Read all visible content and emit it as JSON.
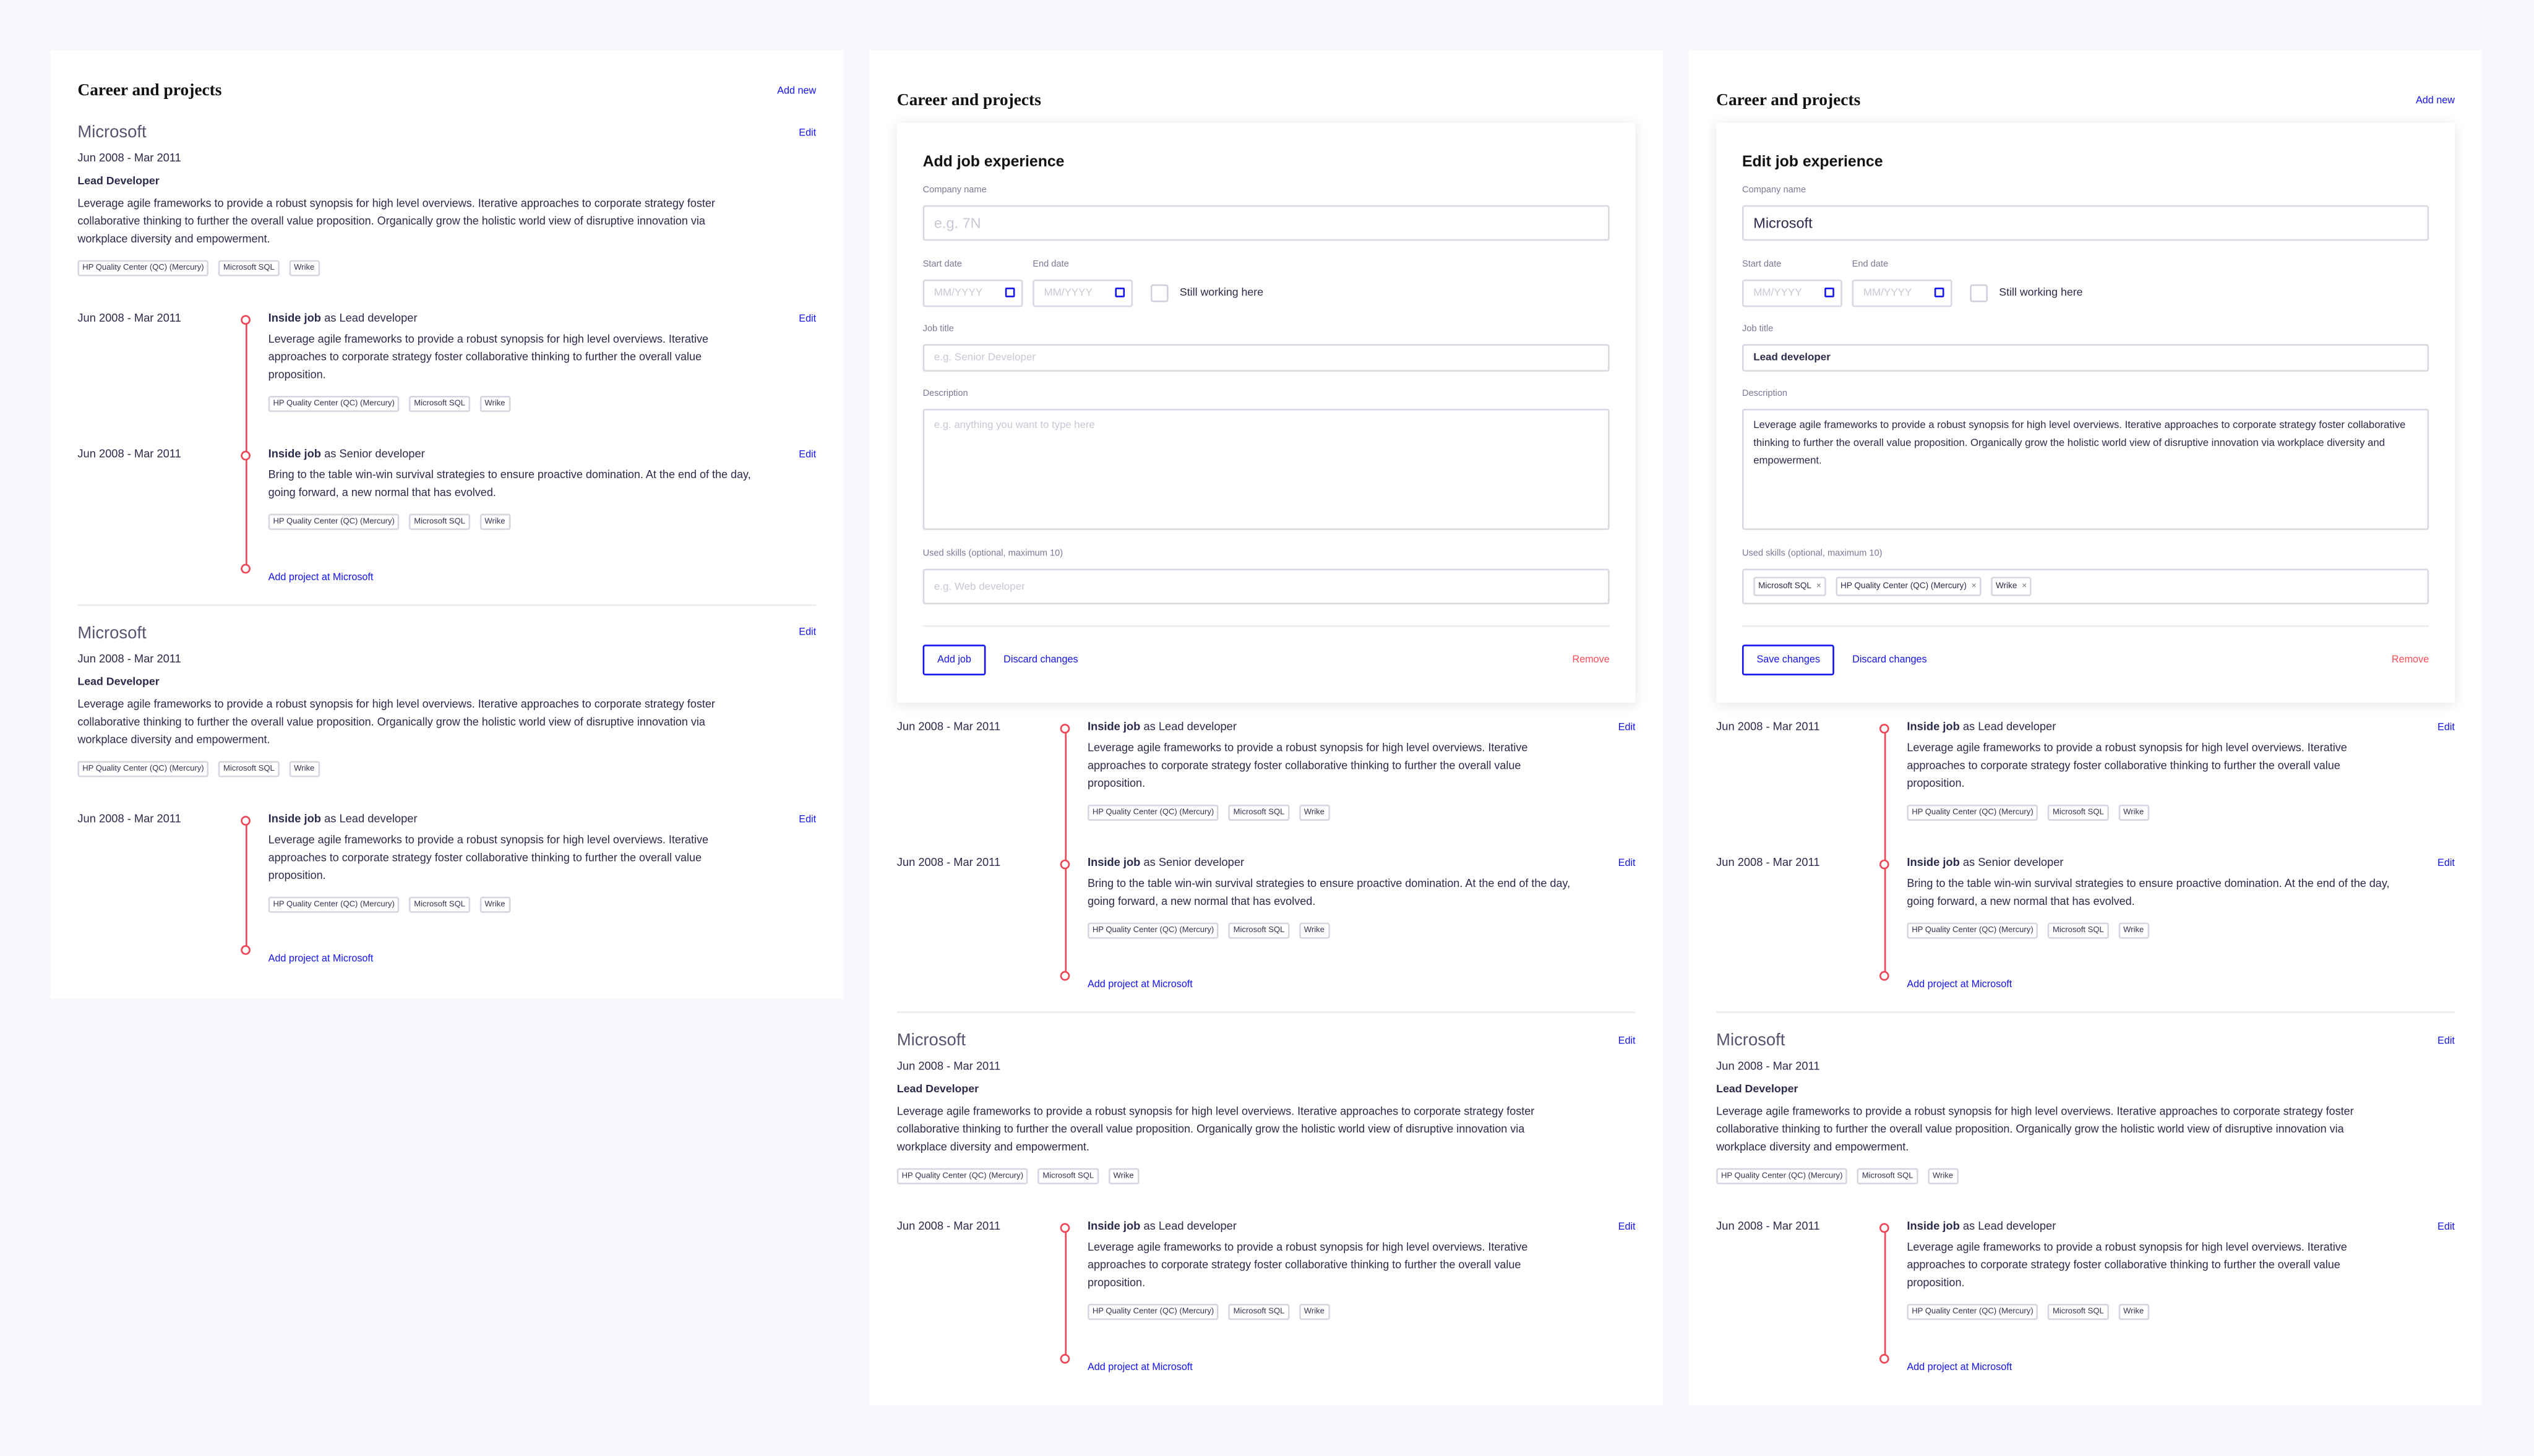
{
  "colors": {
    "background": "#f6f6fd",
    "accent": "#1414f0",
    "timeline": "#ee4455",
    "danger": "#ff4d5a"
  },
  "panels": [
    {
      "title": "Career and projects",
      "add_new_label": "Add new",
      "companies": [
        {
          "name": "Microsoft",
          "edit_label": "Edit",
          "dates": "Jun 2008 - Mar 2011",
          "job_title": "Lead Developer",
          "description": "Leverage agile frameworks to provide a robust synopsis for high level overviews. Iterative approaches to corporate strategy foster collaborative thinking to further the overall value proposition. Organically grow the holistic world view of disruptive innovation via workplace diversity and empowerment.",
          "skills": [
            "HP Quality Center (QC) (Mercury)",
            "Microsoft SQL",
            "Wrike"
          ],
          "projects": [
            {
              "dates": "Jun 2008 - Mar 2011",
              "name": "Inside job",
              "role": "as Lead developer",
              "edit_label": "Edit",
              "description": "Leverage agile frameworks to provide a robust synopsis for high level overviews. Iterative approaches to corporate strategy foster collaborative thinking to further the overall value proposition.",
              "skills": [
                "HP Quality Center (QC) (Mercury)",
                "Microsoft SQL",
                "Wrike"
              ]
            },
            {
              "dates": "Jun 2008 - Mar 2011",
              "name": "Inside job",
              "role": "as Senior developer",
              "edit_label": "Edit",
              "description": "Bring to the table win-win survival strategies to ensure proactive domination. At the end of the day, going forward, a new normal that has evolved.",
              "skills": [
                "HP Quality Center (QC) (Mercury)",
                "Microsoft SQL",
                "Wrike"
              ]
            }
          ],
          "add_project_label": "Add project at Microsoft"
        },
        {
          "name": "Microsoft",
          "edit_label": "Edit",
          "dates": "Jun 2008 - Mar 2011",
          "job_title": "Lead Developer",
          "description": "Leverage agile frameworks to provide a robust synopsis for high level overviews. Iterative approaches to corporate strategy foster collaborative thinking to further the overall value proposition. Organically grow the holistic world view of disruptive innovation via workplace diversity and empowerment.",
          "skills": [
            "HP Quality Center (QC) (Mercury)",
            "Microsoft SQL",
            "Wrike"
          ],
          "projects": [
            {
              "dates": "Jun 2008 - Mar 2011",
              "name": "Inside job",
              "role": "as Lead developer",
              "edit_label": "Edit",
              "description": "Leverage agile frameworks to provide a robust synopsis for high level overviews. Iterative approaches to corporate strategy foster collaborative thinking to further the overall value proposition.",
              "skills": [
                "HP Quality Center (QC) (Mercury)",
                "Microsoft SQL",
                "Wrike"
              ]
            }
          ],
          "add_project_label": "Add project at Microsoft"
        }
      ]
    },
    {
      "title": "Career and projects",
      "form": {
        "heading": "Add job experience",
        "company_label": "Company name",
        "company_placeholder": "e.g. 7N",
        "start_label": "Start date",
        "start_placeholder": "MM/YYYY",
        "end_label": "End date",
        "end_placeholder": "MM/YYYY",
        "still_working_label": "Still working here",
        "still_working_checked": false,
        "job_title_label": "Job title",
        "job_title_placeholder": "e.g. Senior Developer",
        "description_label": "Description",
        "description_placeholder": "e.g. anything you want to type here",
        "skills_label": "Used skills (optional, maximum 10)",
        "skills_placeholder": "e.g. Web developer",
        "primary_label": "Add job",
        "discard_label": "Discard changes",
        "remove_label": "Remove"
      },
      "form_projects": {
        "projects": [
          {
            "dates": "Jun 2008 - Mar 2011",
            "name": "Inside job",
            "role": "as Lead developer",
            "edit_label": "Edit",
            "description": "Leverage agile frameworks to provide a robust synopsis for high level overviews. Iterative approaches to corporate strategy foster collaborative thinking to further the overall value proposition.",
            "skills": [
              "HP Quality Center (QC) (Mercury)",
              "Microsoft SQL",
              "Wrike"
            ]
          },
          {
            "dates": "Jun 2008 - Mar 2011",
            "name": "Inside job",
            "role": "as Senior developer",
            "edit_label": "Edit",
            "description": "Bring to the table win-win survival strategies to ensure proactive domination. At the end of the day, going forward, a new normal that has evolved.",
            "skills": [
              "HP Quality Center (QC) (Mercury)",
              "Microsoft SQL",
              "Wrike"
            ]
          }
        ],
        "add_project_label": "Add project at Microsoft"
      },
      "companies": [
        {
          "name": "Microsoft",
          "edit_label": "Edit",
          "dates": "Jun 2008 - Mar 2011",
          "job_title": "Lead Developer",
          "description": "Leverage agile frameworks to provide a robust synopsis for high level overviews. Iterative approaches to corporate strategy foster collaborative thinking to further the overall value proposition. Organically grow the holistic world view of disruptive innovation via workplace diversity and empowerment.",
          "skills": [
            "HP Quality Center (QC) (Mercury)",
            "Microsoft SQL",
            "Wrike"
          ],
          "projects": [
            {
              "dates": "Jun 2008 - Mar 2011",
              "name": "Inside job",
              "role": "as Lead developer",
              "edit_label": "Edit",
              "description": "Leverage agile frameworks to provide a robust synopsis for high level overviews. Iterative approaches to corporate strategy foster collaborative thinking to further the overall value proposition.",
              "skills": [
                "HP Quality Center (QC) (Mercury)",
                "Microsoft SQL",
                "Wrike"
              ]
            }
          ],
          "add_project_label": "Add project at Microsoft"
        }
      ]
    },
    {
      "title": "Career and projects",
      "add_new_label": "Add new",
      "form": {
        "heading": "Edit job experience",
        "company_label": "Company name",
        "company_value": "Microsoft",
        "start_label": "Start date",
        "start_placeholder": "MM/YYYY",
        "end_label": "End date",
        "end_placeholder": "MM/YYYY",
        "still_working_label": "Still working here",
        "still_working_checked": false,
        "job_title_label": "Job title",
        "job_title_value": "Lead developer",
        "description_label": "Description",
        "description_value": "Leverage agile frameworks to provide a robust synopsis for high level overviews. Iterative approaches to corporate strategy foster collaborative thinking to further the overall value proposition. Organically grow the holistic world view of disruptive innovation via workplace diversity and empowerment.",
        "skills_label": "Used skills (optional, maximum 10)",
        "skills": [
          "Microsoft SQL",
          "HP Quality Center (QC) (Mercury)",
          "Wrike"
        ],
        "remove_chip_glyph": "×",
        "primary_label": "Save changes",
        "discard_label": "Discard changes",
        "remove_label": "Remove"
      },
      "form_projects": {
        "projects": [
          {
            "dates": "Jun 2008 - Mar 2011",
            "name": "Inside job",
            "role": "as Lead developer",
            "edit_label": "Edit",
            "description": "Leverage agile frameworks to provide a robust synopsis for high level overviews. Iterative approaches to corporate strategy foster collaborative thinking to further the overall value proposition.",
            "skills": [
              "HP Quality Center (QC) (Mercury)",
              "Microsoft SQL",
              "Wrike"
            ]
          },
          {
            "dates": "Jun 2008 - Mar 2011",
            "name": "Inside job",
            "role": "as Senior developer",
            "edit_label": "Edit",
            "description": "Bring to the table win-win survival strategies to ensure proactive domination. At the end of the day, going forward, a new normal that has evolved.",
            "skills": [
              "HP Quality Center (QC) (Mercury)",
              "Microsoft SQL",
              "Wrike"
            ]
          }
        ],
        "add_project_label": "Add project at Microsoft"
      },
      "companies": [
        {
          "name": "Microsoft",
          "edit_label": "Edit",
          "dates": "Jun 2008 - Mar 2011",
          "job_title": "Lead Developer",
          "description": "Leverage agile frameworks to provide a robust synopsis for high level overviews. Iterative approaches to corporate strategy foster collaborative thinking to further the overall value proposition. Organically grow the holistic world view of disruptive innovation via workplace diversity and empowerment.",
          "skills": [
            "HP Quality Center (QC) (Mercury)",
            "Microsoft SQL",
            "Wrike"
          ],
          "projects": [
            {
              "dates": "Jun 2008 - Mar 2011",
              "name": "Inside job",
              "role": "as Lead developer",
              "edit_label": "Edit",
              "description": "Leverage agile frameworks to provide a robust synopsis for high level overviews. Iterative approaches to corporate strategy foster collaborative thinking to further the overall value proposition.",
              "skills": [
                "HP Quality Center (QC) (Mercury)",
                "Microsoft SQL",
                "Wrike"
              ]
            }
          ],
          "add_project_label": "Add project at Microsoft"
        }
      ]
    }
  ]
}
